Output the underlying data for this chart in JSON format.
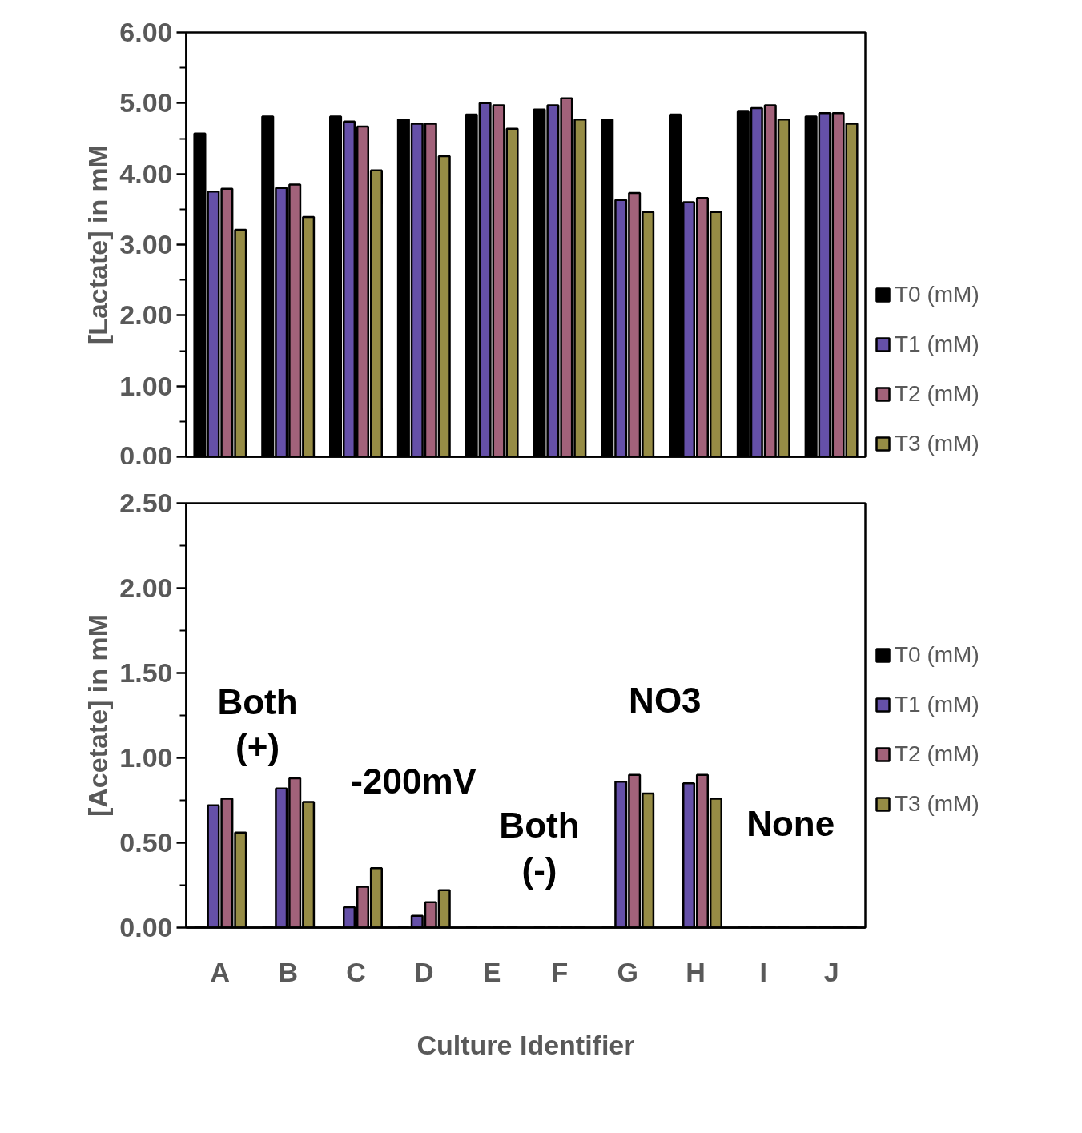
{
  "chart_data": [
    {
      "type": "bar",
      "ylabel": "[Lactate] in mM",
      "categories": [
        null,
        null,
        null,
        null,
        null,
        null,
        null,
        null,
        null,
        null
      ],
      "series": [
        {
          "name": "T0 (mM)",
          "color": "#000000",
          "values": [
            4.57,
            4.81,
            4.81,
            4.77,
            4.84,
            4.91,
            4.77,
            4.84,
            4.88,
            4.81
          ]
        },
        {
          "name": "T1 (mM)",
          "color": "#6550a8",
          "values": [
            3.75,
            3.8,
            4.74,
            4.71,
            5.0,
            4.97,
            3.63,
            3.6,
            4.93,
            4.86
          ]
        },
        {
          "name": "T2 (mM)",
          "color": "#a2627a",
          "values": [
            3.79,
            3.85,
            4.67,
            4.71,
            4.97,
            5.07,
            3.73,
            3.66,
            4.97,
            4.86
          ]
        },
        {
          "name": "T3 (mM)",
          "color": "#968c45",
          "values": [
            3.21,
            3.39,
            4.05,
            4.25,
            4.64,
            4.77,
            3.46,
            3.46,
            4.77,
            4.71
          ]
        }
      ],
      "ylim": [
        0,
        6
      ],
      "yticks": [
        {
          "value": 0,
          "label": "0.00"
        },
        {
          "value": 0.5,
          "label": null
        },
        {
          "value": 1,
          "label": "1.00"
        },
        {
          "value": 1.5,
          "label": null
        },
        {
          "value": 2,
          "label": "2.00"
        },
        {
          "value": 2.5,
          "label": null
        },
        {
          "value": 3,
          "label": "3.00"
        },
        {
          "value": 3.5,
          "label": null
        },
        {
          "value": 4,
          "label": "4.00"
        },
        {
          "value": 4.5,
          "label": null
        },
        {
          "value": 5,
          "label": "5.00"
        },
        {
          "value": 5.5,
          "label": null
        },
        {
          "value": 6,
          "label": "6.00"
        }
      ],
      "tick_labels": "y",
      "legend": "right"
    },
    {
      "type": "bar",
      "xlabel": "Culture Identifier",
      "ylabel": "[Acetate] in mM",
      "categories": [
        "A",
        "B",
        "C",
        "D",
        "E",
        "F",
        "G",
        "H",
        "I",
        "J"
      ],
      "series": [
        {
          "name": "T0 (mM)",
          "color": "#000000",
          "values": [
            0,
            0,
            0,
            0,
            0,
            0,
            0,
            0,
            0,
            0
          ]
        },
        {
          "name": "T1 (mM)",
          "color": "#6550a8",
          "values": [
            0.72,
            0.82,
            0.12,
            0.07,
            0,
            0,
            0.86,
            0.85,
            0,
            0
          ]
        },
        {
          "name": "T2 (mM)",
          "color": "#a2627a",
          "values": [
            0.76,
            0.88,
            0.24,
            0.15,
            0,
            0,
            0.9,
            0.9,
            0,
            0
          ]
        },
        {
          "name": "T3 (mM)",
          "color": "#968c45",
          "values": [
            0.56,
            0.74,
            0.35,
            0.22,
            0,
            0,
            0.79,
            0.76,
            0,
            0
          ]
        }
      ],
      "ylim": [
        0,
        2.5
      ],
      "yticks": [
        {
          "value": 0,
          "label": "0.00"
        },
        {
          "value": 0.25,
          "label": null
        },
        {
          "value": 0.5,
          "label": "0.50"
        },
        {
          "value": 0.75,
          "label": null
        },
        {
          "value": 1,
          "label": "1.00"
        },
        {
          "value": 1.25,
          "label": null
        },
        {
          "value": 1.5,
          "label": "1.50"
        },
        {
          "value": 1.75,
          "label": null
        },
        {
          "value": 2,
          "label": "2.00"
        },
        {
          "value": 2.25,
          "label": null
        },
        {
          "value": 2.5,
          "label": "2.50"
        }
      ],
      "annotations": [
        "Both\n(+)",
        "-200mV",
        "Both\n(-)",
        "NO3",
        "None"
      ],
      "legend": "right"
    }
  ]
}
